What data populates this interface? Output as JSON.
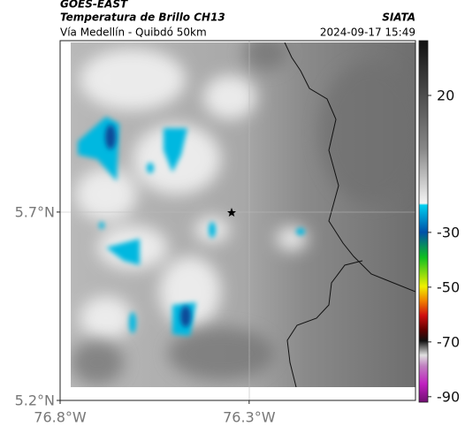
{
  "header": {
    "title": "GOES-EAST",
    "subtitle": "Temperatura de Brillo CH13",
    "source": "SIATA",
    "location": "Vía Medellín - Quibdó 50km",
    "timestamp": "2024-09-17 15:49"
  },
  "map": {
    "lon_lim": [
      -76.8,
      -75.86
    ],
    "lat_lim": [
      5.2,
      6.155
    ],
    "lon_ticks": [
      {
        "value": -76.8,
        "label": "76.8°W"
      },
      {
        "value": -76.3,
        "label": "76.3°W"
      }
    ],
    "lat_ticks": [
      {
        "value": 5.7,
        "label": "5.7°N"
      },
      {
        "value": 5.2,
        "label": "5.2°N"
      }
    ]
  },
  "colorbar": {
    "lim": [
      -92,
      40
    ],
    "ticks": [
      20,
      -30,
      -50,
      -70,
      -90
    ]
  }
}
